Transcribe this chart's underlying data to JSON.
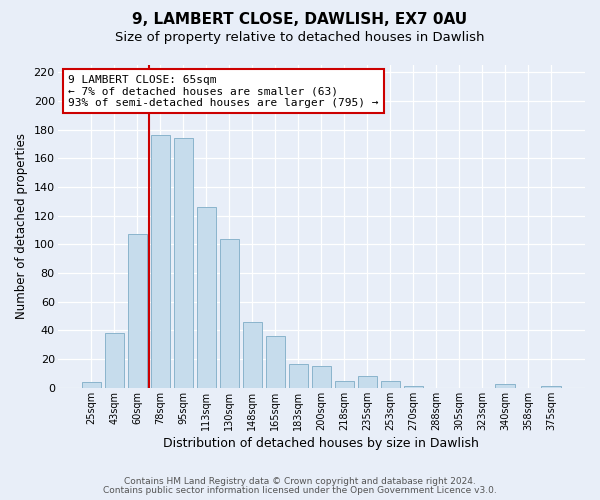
{
  "title1": "9, LAMBERT CLOSE, DAWLISH, EX7 0AU",
  "title2": "Size of property relative to detached houses in Dawlish",
  "xlabel": "Distribution of detached houses by size in Dawlish",
  "ylabel": "Number of detached properties",
  "bin_labels": [
    "25sqm",
    "43sqm",
    "60sqm",
    "78sqm",
    "95sqm",
    "113sqm",
    "130sqm",
    "148sqm",
    "165sqm",
    "183sqm",
    "200sqm",
    "218sqm",
    "235sqm",
    "253sqm",
    "270sqm",
    "288sqm",
    "305sqm",
    "323sqm",
    "340sqm",
    "358sqm",
    "375sqm"
  ],
  "bar_heights": [
    4,
    38,
    107,
    176,
    174,
    126,
    104,
    46,
    36,
    17,
    15,
    5,
    8,
    5,
    1,
    0,
    0,
    0,
    3,
    0,
    1
  ],
  "bar_color": "#c6dcec",
  "bar_edge_color": "#8ab4cc",
  "vline_color": "#cc0000",
  "annotation_text": "9 LAMBERT CLOSE: 65sqm\n← 7% of detached houses are smaller (63)\n93% of semi-detached houses are larger (795) →",
  "annotation_box_edgecolor": "#cc0000",
  "ylim": [
    0,
    225
  ],
  "yticks": [
    0,
    20,
    40,
    60,
    80,
    100,
    120,
    140,
    160,
    180,
    200,
    220
  ],
  "footer1": "Contains HM Land Registry data © Crown copyright and database right 2024.",
  "footer2": "Contains public sector information licensed under the Open Government Licence v3.0.",
  "bg_color": "#e8eef8",
  "plot_bg_color": "#e8eef8"
}
